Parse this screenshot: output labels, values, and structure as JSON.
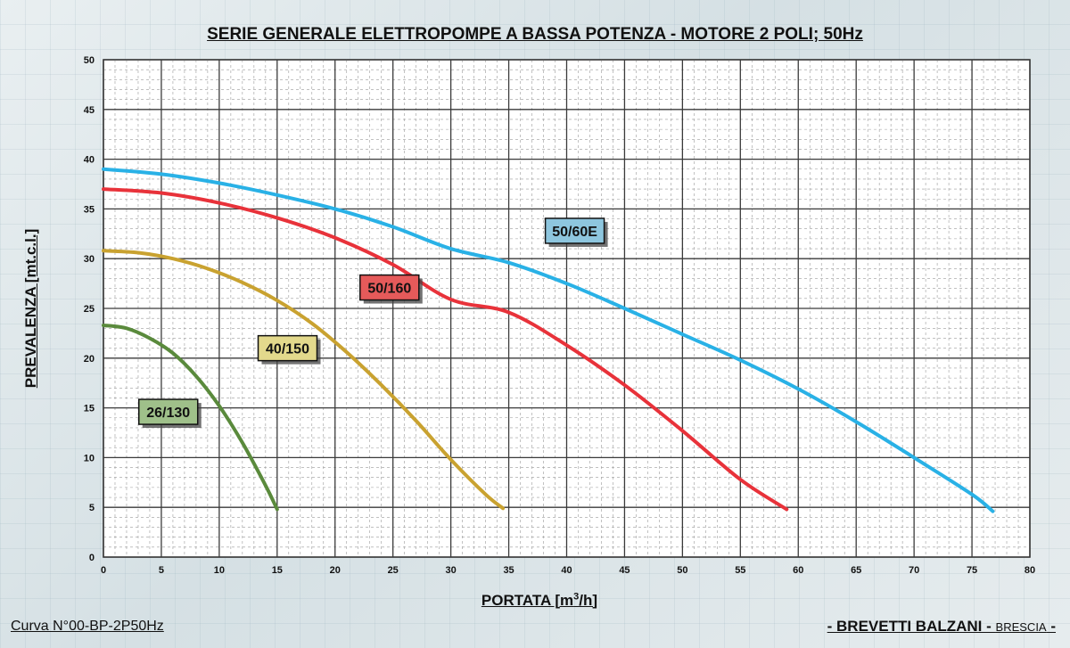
{
  "header": {
    "title": "SERIE GENERALE ELETTROPOMPE A BASSA POTENZA - MOTORE 2 POLI; 50Hz"
  },
  "footer": {
    "left": "Curva N°00-BP-2P50Hz",
    "right_main": "- BREVETTI BALZANI -",
    "right_city": "BRESCIA"
  },
  "chart_data": {
    "type": "line",
    "title": "SERIE GENERALE ELETTROPOMPE A BASSA POTENZA - MOTORE 2 POLI; 50Hz",
    "xlabel": "PORTATA [m³/h]",
    "xlabel_parts": [
      "PORTATA [m",
      "3",
      "/h]"
    ],
    "ylabel": "PREVALENZA [mt.c.l.]",
    "xlim": [
      0,
      80
    ],
    "ylim": [
      0,
      50
    ],
    "xticks": [
      0,
      5,
      10,
      15,
      20,
      25,
      30,
      35,
      40,
      45,
      50,
      55,
      60,
      65,
      70,
      75,
      80
    ],
    "yticks": [
      0,
      5,
      10,
      15,
      20,
      25,
      30,
      35,
      40,
      45,
      50
    ],
    "grid": true,
    "minor_grid": true,
    "legend": "none",
    "series": [
      {
        "name": "26/130",
        "color": "#5a8a3c",
        "x": [
          0,
          2,
          4,
          6,
          8,
          10,
          12,
          14,
          15
        ],
        "y": [
          23.3,
          23.0,
          22.0,
          20.5,
          18.2,
          15.2,
          11.5,
          7.2,
          4.8
        ]
      },
      {
        "name": "40/150",
        "color": "#c9a230",
        "x": [
          0,
          3,
          6,
          9,
          12,
          15,
          18,
          21,
          24,
          27,
          30,
          33,
          34.5
        ],
        "y": [
          30.8,
          30.6,
          30.0,
          29.0,
          27.6,
          25.8,
          23.5,
          20.6,
          17.3,
          13.7,
          9.8,
          6.3,
          4.9
        ]
      },
      {
        "name": "50/160",
        "color": "#e8323a",
        "x": [
          0,
          5,
          10,
          15,
          20,
          25,
          30,
          35,
          40,
          45,
          50,
          55,
          59
        ],
        "y": [
          37.0,
          36.6,
          35.6,
          34.1,
          32.1,
          29.4,
          25.9,
          24.6,
          21.3,
          17.3,
          12.7,
          7.8,
          4.8
        ]
      },
      {
        "name": "50/60E",
        "color": "#29b1e6",
        "x": [
          0,
          5,
          10,
          15,
          20,
          25,
          30,
          35,
          40,
          45,
          50,
          55,
          60,
          65,
          70,
          75,
          76.8
        ],
        "y": [
          39.0,
          38.5,
          37.6,
          36.4,
          35.0,
          33.2,
          31.0,
          29.6,
          27.5,
          25.0,
          22.4,
          19.8,
          16.9,
          13.6,
          10.0,
          6.3,
          4.6
        ]
      }
    ],
    "labels": [
      {
        "text": "26/130",
        "x": 5.6,
        "y": 14.6,
        "fill": "#9fc08a"
      },
      {
        "text": "40/150",
        "x": 15.9,
        "y": 21.0,
        "fill": "#e3d98c"
      },
      {
        "text": "50/160",
        "x": 24.7,
        "y": 27.1,
        "fill": "#e55a5a"
      },
      {
        "text": "50/60E",
        "x": 40.7,
        "y": 32.8,
        "fill": "#8ec6de"
      }
    ]
  }
}
